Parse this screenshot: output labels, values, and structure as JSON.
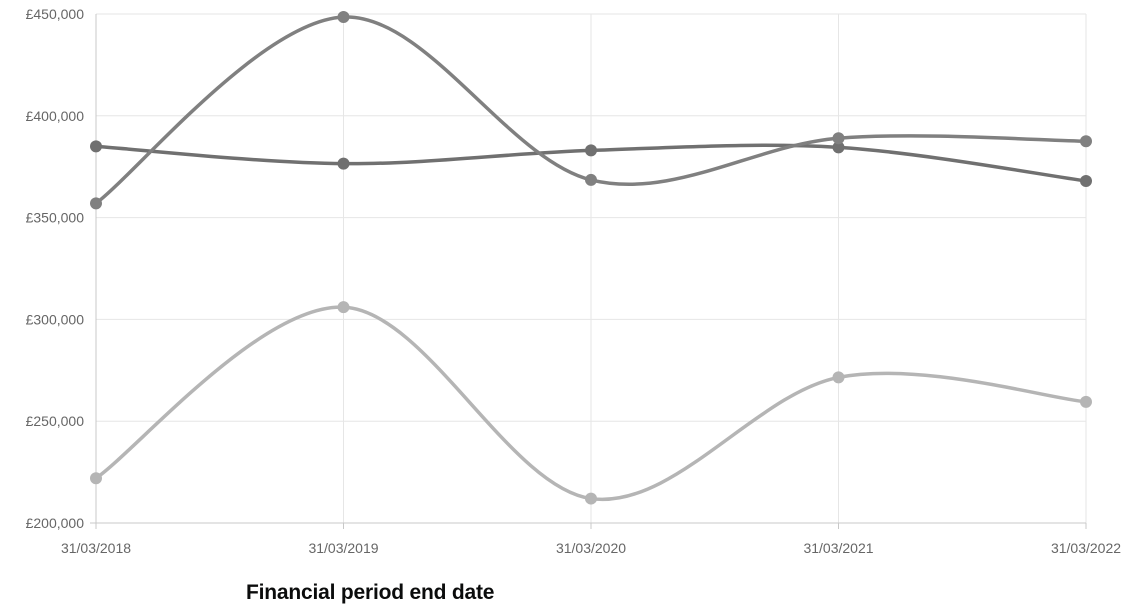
{
  "chart_data": {
    "type": "line",
    "title": "",
    "xlabel": "Financial period end date",
    "ylabel": "",
    "categories": [
      "31/03/2018",
      "31/03/2019",
      "31/03/2020",
      "31/03/2021",
      "31/03/2022"
    ],
    "ylim": [
      200000,
      450000
    ],
    "yticks": [
      200000,
      250000,
      300000,
      350000,
      400000,
      450000
    ],
    "ytick_labels": [
      "£200,000",
      "£250,000",
      "£300,000",
      "£350,000",
      "£400,000",
      "£450,000"
    ],
    "grid": true,
    "legend": "none",
    "curve": "smooth",
    "series": [
      {
        "values": [
          385000,
          376500,
          383000,
          384500,
          368000
        ],
        "color": "#707070"
      },
      {
        "values": [
          357000,
          448500,
          368500,
          389000,
          387500
        ],
        "color": "#808080"
      },
      {
        "values": [
          222000,
          306000,
          212000,
          271500,
          259500
        ],
        "color": "#b5b5b5"
      }
    ]
  }
}
